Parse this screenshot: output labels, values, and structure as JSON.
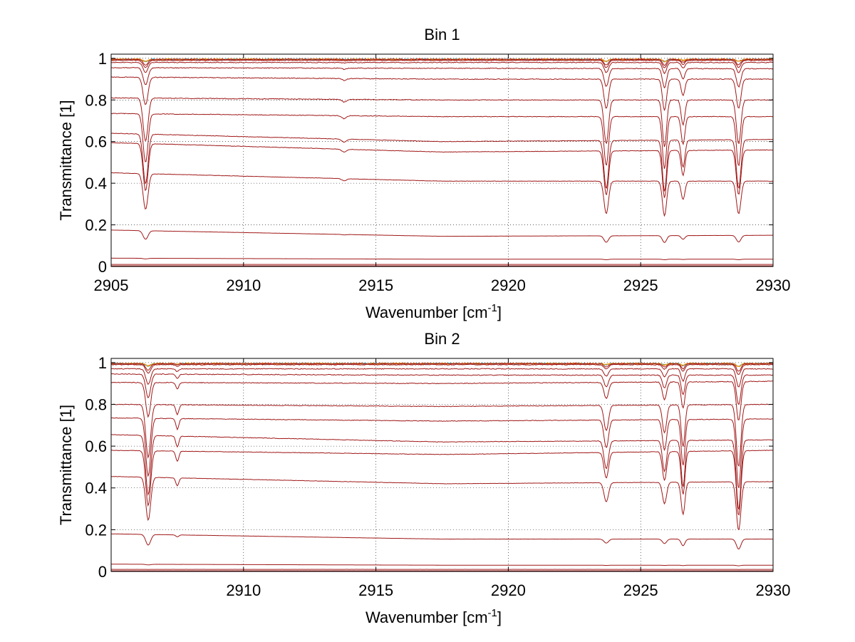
{
  "chart_data": [
    {
      "type": "line",
      "title": "Bin 1",
      "xlabel": "Wavenumber [cm",
      "xlabel_sup": "-1",
      "xlabel_tail": "]",
      "ylabel": "Transmittance [1]",
      "xlim": [
        2905,
        2930
      ],
      "ylim": [
        0,
        1.02
      ],
      "xticks": [
        2905,
        2910,
        2915,
        2920,
        2925,
        2930
      ],
      "yticks": [
        0,
        0.2,
        0.4,
        0.6,
        0.8,
        1
      ],
      "ytick_labels": [
        "0",
        "0.2",
        "0.4",
        "0.6",
        "0.8",
        "1"
      ],
      "grid": true,
      "line_color": "#a01818",
      "top_noise_colors": [
        "#ff8000",
        "#ff2000",
        "#30c0e0",
        "#f0a000"
      ],
      "baselines": [
        [
          0.995,
          0.995,
          0.995
        ],
        [
          0.99,
          0.99,
          0.99
        ],
        [
          0.98,
          0.98,
          0.98
        ],
        [
          0.955,
          0.952,
          0.95
        ],
        [
          0.91,
          0.9,
          0.9
        ],
        [
          0.81,
          0.8,
          0.8
        ],
        [
          0.735,
          0.72,
          0.72
        ],
        [
          0.64,
          0.6,
          0.61
        ],
        [
          0.595,
          0.55,
          0.56
        ],
        [
          0.45,
          0.41,
          0.41
        ],
        [
          0.175,
          0.145,
          0.15
        ],
        [
          0.04,
          0.035,
          0.035
        ],
        [
          0.01,
          0.01,
          0.01
        ],
        [
          0.003,
          0.003,
          0.003
        ]
      ],
      "absorption_lines": [
        {
          "center": 2906.3,
          "width": 0.13,
          "depth": 0.32
        },
        {
          "center": 2913.8,
          "width": 0.12,
          "depth": 0.02
        },
        {
          "center": 2923.7,
          "width": 0.12,
          "depth": 0.32
        },
        {
          "center": 2925.9,
          "width": 0.11,
          "depth": 0.34
        },
        {
          "center": 2926.6,
          "width": 0.1,
          "depth": 0.18
        },
        {
          "center": 2928.7,
          "width": 0.12,
          "depth": 0.32
        }
      ]
    },
    {
      "type": "line",
      "title": "Bin 2",
      "xlabel": "Wavenumber [cm",
      "xlabel_sup": "-1",
      "xlabel_tail": "]",
      "ylabel": "Transmittance [1]",
      "xlim": [
        2905,
        2930
      ],
      "ylim": [
        0,
        1.02
      ],
      "xticks": [
        2910,
        2915,
        2920,
        2925,
        2930
      ],
      "yticks": [
        0,
        0.2,
        0.4,
        0.6,
        0.8,
        1
      ],
      "ytick_labels": [
        "0",
        "0.2",
        "0.4",
        "0.6",
        "0.8",
        "1"
      ],
      "grid": true,
      "line_color": "#a01818",
      "top_noise_colors": [
        "#ff8000",
        "#ff2000",
        "#30c0e0",
        "#f0a000"
      ],
      "baselines": [
        [
          0.995,
          0.995,
          0.995
        ],
        [
          0.99,
          0.99,
          0.99
        ],
        [
          0.97,
          0.97,
          0.97
        ],
        [
          0.945,
          0.94,
          0.94
        ],
        [
          0.905,
          0.9,
          0.91
        ],
        [
          0.8,
          0.79,
          0.8
        ],
        [
          0.735,
          0.72,
          0.73
        ],
        [
          0.655,
          0.62,
          0.63
        ],
        [
          0.58,
          0.56,
          0.58
        ],
        [
          0.455,
          0.42,
          0.43
        ],
        [
          0.18,
          0.155,
          0.155
        ],
        [
          0.035,
          0.03,
          0.03
        ],
        [
          0.01,
          0.01,
          0.01
        ],
        [
          0.003,
          0.003,
          0.003
        ]
      ],
      "absorption_lines": [
        {
          "center": 2906.4,
          "width": 0.13,
          "depth": 0.38
        },
        {
          "center": 2907.5,
          "width": 0.08,
          "depth": 0.07
        },
        {
          "center": 2923.7,
          "width": 0.12,
          "depth": 0.18
        },
        {
          "center": 2925.9,
          "width": 0.11,
          "depth": 0.2
        },
        {
          "center": 2926.6,
          "width": 0.1,
          "depth": 0.3
        },
        {
          "center": 2928.7,
          "width": 0.12,
          "depth": 0.45
        }
      ]
    }
  ]
}
